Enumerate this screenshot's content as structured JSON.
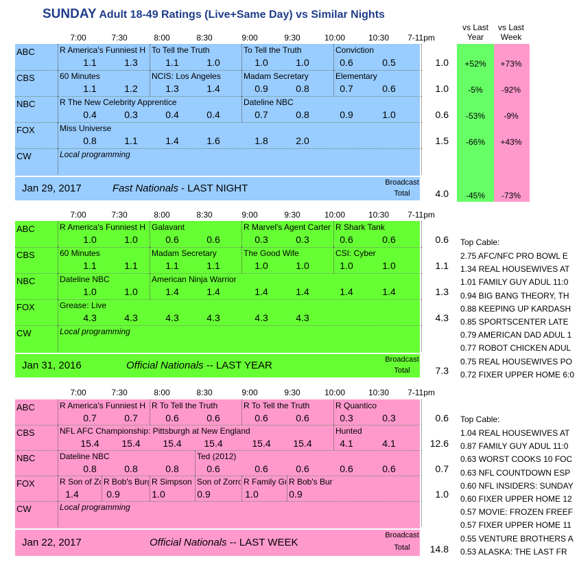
{
  "title": {
    "main": "SUNDAY",
    "rest": " Adult 18-49 Ratings (Live+Same Day) vs Similar Nights"
  },
  "col_headers": {
    "vs_year": [
      "vs Last",
      "Year"
    ],
    "vs_week": [
      "vs Last",
      "Week"
    ]
  },
  "time_slots": [
    "7:00",
    "7:30",
    "8:00",
    "8:30",
    "9:00",
    "9:30",
    "10:00",
    "10:30",
    "7-11pm"
  ],
  "networks": [
    "ABC",
    "CBS",
    "NBC",
    "FOX",
    "CW"
  ],
  "colors": {
    "panel1": "#99ccff",
    "panel2": "#66ff33",
    "panel3": "#ff99cc",
    "vs_year": "#66ff66",
    "vs_week": "#ff99cc"
  },
  "panels": [
    {
      "date": "Jan 29, 2017",
      "label_italic": "Fast Nationals",
      "label_plain": " - LAST NIGHT",
      "broadcast": [
        "Broadcast",
        "Total"
      ],
      "broadcast_total": "4.0",
      "rows": [
        {
          "shows": [
            "R America's Funniest H",
            "To Tell the Truth",
            "To Tell the Truth",
            "Conviction"
          ],
          "ratings": [
            "1.1",
            "1.3",
            "1.1",
            "1.0",
            "1.0",
            "1.0",
            "0.6",
            "0.5"
          ],
          "total": "1.0",
          "vs_year": "+52%",
          "vs_week": "+73%"
        },
        {
          "shows": [
            "60 Minutes",
            "NCIS: Los Angeles",
            "Madam Secretary",
            "Elementary"
          ],
          "ratings": [
            "1.1",
            "1.2",
            "1.3",
            "1.4",
            "0.9",
            "0.8",
            "0.7",
            "0.6"
          ],
          "total": "1.0",
          "vs_year": "-5%",
          "vs_week": "-92%"
        },
        {
          "shows": [
            "R The New Celebrity Apprentice",
            "Dateline NBC"
          ],
          "ratings": [
            "0.4",
            "0.3",
            "0.4",
            "0.4",
            "0.7",
            "0.8",
            "0.9",
            "1.0"
          ],
          "total": "0.6",
          "vs_year": "-53%",
          "vs_week": "-9%"
        },
        {
          "shows": [
            "Miss Universe"
          ],
          "ratings": [
            "0.8",
            "1.1",
            "1.4",
            "1.6",
            "1.8",
            "2.0"
          ],
          "total": "1.5",
          "vs_year": "-66%",
          "vs_week": "+43%"
        },
        {
          "shows": [
            "Local programming"
          ],
          "ratings": [],
          "total": "",
          "vs_year": "",
          "vs_week": ""
        }
      ],
      "total_vs_year": "-45%",
      "total_vs_week": "-73%"
    },
    {
      "date": "Jan 31, 2016",
      "label_italic": "Official Nationals",
      "label_plain": " -- LAST YEAR",
      "broadcast": [
        "Broadcast",
        "Total"
      ],
      "broadcast_total": "7.3",
      "rows": [
        {
          "shows": [
            "R America's Funniest H",
            "Galavant",
            "R Marvel's Agent Carter",
            "R Shark Tank"
          ],
          "ratings": [
            "1.0",
            "1.0",
            "0.6",
            "0.6",
            "0.3",
            "0.3",
            "0.6",
            "0.6"
          ],
          "total": "0.6"
        },
        {
          "shows": [
            "60 Minutes",
            "Madam Secretary",
            "The Good Wife",
            "CSI: Cyber"
          ],
          "ratings": [
            "1.1",
            "1.1",
            "1.1",
            "1.1",
            "1.0",
            "1.0",
            "1.0",
            "1.0"
          ],
          "total": "1.1"
        },
        {
          "shows": [
            "Dateline NBC",
            "American Ninja Warrior"
          ],
          "ratings": [
            "1.0",
            "1.0",
            "1.4",
            "1.4",
            "1.4",
            "1.4",
            "1.4",
            "1.4"
          ],
          "total": "1.3"
        },
        {
          "shows": [
            "Grease: Live"
          ],
          "ratings": [
            "4.3",
            "4.3",
            "4.3",
            "4.3",
            "4.3",
            "4.3"
          ],
          "total": "4.3"
        },
        {
          "shows": [
            "Local programming"
          ],
          "ratings": [],
          "total": ""
        }
      ],
      "cable_title": "Top Cable:",
      "cable": [
        "2.75 AFC/NFC PRO BOWL E",
        "1.34 REAL HOUSEWIVES AT",
        "1.01 FAMILY GUY ADUL 11:0",
        "0.94 BIG BANG THEORY, TH",
        "0.88 KEEPING UP KARDASH",
        "0.85 SPORTSCENTER LATE",
        "0.79 AMERICAN DAD ADUL 1",
        "0.77 ROBOT CHICKEN ADUL",
        "0.75 REAL HOUSEWIVES PO",
        "0.72 FIXER UPPER HOME 6:0"
      ]
    },
    {
      "date": "Jan 22, 2017",
      "label_italic": "Official Nationals",
      "label_plain": " -- LAST WEEK",
      "broadcast": [
        "Broadcast",
        "Total"
      ],
      "broadcast_total": "14.8",
      "rows": [
        {
          "shows": [
            "R America's Funniest H",
            "R To Tell the Truth",
            "R To Tell the Truth",
            "R Quantico"
          ],
          "ratings": [
            "0.7",
            "0.7",
            "0.6",
            "0.6",
            "0.6",
            "0.6",
            "0.3",
            "0.3"
          ],
          "total": "0.6"
        },
        {
          "shows": [
            "NFL AFC Championship: Pittsburgh at New England",
            "Hunted"
          ],
          "ratings": [
            "15.4",
            "15.4",
            "15.4",
            "15.4",
            "15.4",
            "15.4",
            "4.1",
            "4.1"
          ],
          "total": "12.6"
        },
        {
          "shows": [
            "Dateline NBC",
            "Ted (2012)"
          ],
          "ratings": [
            "0.8",
            "0.8",
            "0.8",
            "0.6",
            "0.6",
            "0.6",
            "0.6",
            "0.6"
          ],
          "total": "0.7"
        },
        {
          "shows": [
            "R Son of Zorro",
            "R Bob's Burgers",
            "R Simpson",
            "Son of Zorro",
            "R Family Guy",
            "R Bob's Burgers"
          ],
          "ratings": [
            "1.4",
            "0.9",
            "1.0",
            "0.9",
            "1.0",
            "0.9"
          ],
          "total": "1.0"
        },
        {
          "shows": [
            "Local programming"
          ],
          "ratings": [],
          "total": ""
        }
      ],
      "cable_title": "Top Cable:",
      "cable": [
        "1.04 REAL HOUSEWIVES AT",
        "0.87 FAMILY GUY ADUL 11:0",
        "0.63 WORST COOKS 10 FOC",
        "0.63 NFL COUNTDOWN ESP",
        "0.60 NFL INSIDERS: SUNDAY",
        "0.60 FIXER UPPER HOME 12",
        "0.57 MOVIE: FROZEN FREEF",
        "0.57 FIXER UPPER HOME 11",
        "0.55 VENTURE BROTHERS A",
        "0.53 ALASKA: THE LAST FR"
      ]
    }
  ]
}
